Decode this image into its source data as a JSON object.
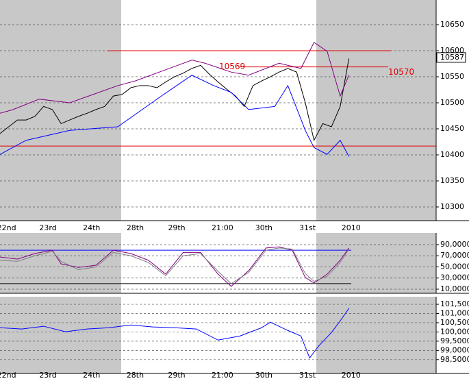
{
  "chart_data": [
    {
      "type": "line",
      "x": [
        0,
        2,
        4,
        6,
        8,
        10,
        12,
        14,
        16,
        18,
        20,
        22,
        24,
        26,
        28,
        30,
        32,
        34,
        36,
        38,
        40,
        42,
        44,
        46,
        48,
        50,
        52,
        54,
        56,
        58,
        60,
        62,
        64,
        66,
        68,
        70,
        72,
        74,
        76,
        78,
        80
      ],
      "series": [
        {
          "color": "#000000",
          "values": [
            10441,
            10454,
            10467,
            10467,
            10474,
            10493,
            10487,
            10460,
            10467,
            10474,
            10480,
            10487,
            10493,
            10513,
            10516,
            10529,
            10533,
            10533,
            10529,
            10540,
            10550,
            10557,
            10566,
            10572,
            10555,
            10540,
            10526,
            10513,
            10493,
            10533,
            10542,
            10550,
            10559,
            10566,
            10559,
            10500,
            10428,
            10460,
            10454,
            10493,
            10585
          ]
        },
        {
          "color": "#800080",
          "x": [
            0,
            3,
            9,
            16,
            27,
            31,
            44,
            47,
            53,
            57,
            64,
            69,
            72,
            75,
            78,
            80
          ],
          "values": [
            10480,
            10487,
            10507,
            10500,
            10533,
            10542,
            10582,
            10576,
            10559,
            10553,
            10576,
            10566,
            10616,
            10599,
            10513,
            10553
          ]
        },
        {
          "color": "#0000ff",
          "x": [
            0,
            6,
            16,
            27,
            37,
            44,
            49,
            53,
            57,
            63,
            66,
            70,
            72,
            75,
            78,
            80
          ],
          "values": [
            10401,
            10428,
            10447,
            10454,
            10513,
            10553,
            10533,
            10520,
            10487,
            10493,
            10533,
            10447,
            10414,
            10401,
            10428,
            10397
          ]
        }
      ],
      "xlim": [
        0,
        100
      ],
      "xticks": [
        {
          "value": 1.5,
          "label": "22nd"
        },
        {
          "value": 11,
          "label": "23rd"
        },
        {
          "value": 21,
          "label": "24th"
        },
        {
          "value": 31,
          "label": "28th"
        },
        {
          "value": 40.5,
          "label": "29th"
        },
        {
          "value": 51,
          "label": "21:00"
        },
        {
          "value": 60.5,
          "label": "30th"
        },
        {
          "value": 70.5,
          "label": "31st"
        },
        {
          "value": 80.5,
          "label": "2010"
        }
      ],
      "ylim": [
        10273.7,
        10697.4
      ],
      "yticks": [
        10300,
        10350,
        10400,
        10450,
        10500,
        10550,
        10600,
        10650
      ],
      "hlines": [
        {
          "value": 10600,
          "color": "#e00000"
        },
        {
          "value": 10417,
          "color": "#e00000"
        },
        {
          "value": 10569,
          "color": "#e00000"
        }
      ],
      "annotations": [
        "10569",
        "10570"
      ],
      "last_value": 10587,
      "grid": true
    },
    {
      "type": "line",
      "x": [
        0,
        4,
        8,
        12,
        14,
        18,
        22,
        26,
        30,
        34,
        38,
        42,
        46,
        50,
        53,
        57,
        61,
        64,
        67,
        70,
        72,
        75,
        78,
        80
      ],
      "series": [
        {
          "color": "#800080",
          "values": [
            67.8,
            64,
            74,
            80,
            55.5,
            49,
            53,
            80,
            74,
            62,
            37,
            76,
            76,
            37,
            15,
            43,
            84,
            86,
            80,
            31,
            21,
            37,
            62,
            84
          ]
        },
        {
          "color": "#808080",
          "values": [
            62,
            60,
            70,
            78,
            60,
            45,
            50,
            76,
            70,
            58,
            34,
            70,
            74,
            42,
            20,
            40,
            80,
            84,
            82,
            38,
            24,
            33,
            58,
            82
          ]
        }
      ],
      "xlim": [
        0,
        100
      ],
      "ylim": [
        2.6,
        110.9
      ],
      "yticks": [
        {
          "value": 10,
          "label": "10,0000"
        },
        {
          "value": 30,
          "label": "30,0000"
        },
        {
          "value": 50,
          "label": "50,0000"
        },
        {
          "value": 70,
          "label": "70,0000"
        },
        {
          "value": 90,
          "label": "90,0000"
        }
      ],
      "hlines": [
        {
          "value": 80,
          "color": "#0000ff"
        },
        {
          "value": 20,
          "color": "#000000"
        }
      ],
      "grid": true
    },
    {
      "type": "line",
      "x": [
        0,
        5,
        10,
        15,
        20,
        25,
        30,
        35,
        40,
        45,
        50,
        55,
        60,
        62,
        66,
        69,
        71,
        73,
        76,
        78,
        80
      ],
      "series": [
        {
          "color": "#0000ff",
          "values": [
            100.23,
            100.16,
            100.31,
            100.01,
            100.16,
            100.23,
            100.38,
            100.27,
            100.23,
            100.16,
            99.56,
            99.78,
            100.23,
            100.53,
            100.08,
            99.78,
            98.59,
            99.22,
            99.97,
            100.6,
            101.28
          ]
        }
      ],
      "xlim": [
        0,
        100
      ],
      "xticks": [
        {
          "value": 1.5,
          "label": "22nd"
        },
        {
          "value": 11,
          "label": "23rd"
        },
        {
          "value": 21,
          "label": "24th"
        },
        {
          "value": 31,
          "label": "28th"
        },
        {
          "value": 40.5,
          "label": "29th"
        },
        {
          "value": 51,
          "label": "21:00"
        },
        {
          "value": 60.5,
          "label": "30th"
        },
        {
          "value": 70.5,
          "label": "31st"
        },
        {
          "value": 80.5,
          "label": "2010"
        }
      ],
      "ylim": [
        97.75,
        101.91
      ],
      "yticks": [
        {
          "value": 98.5,
          "label": "98,5000"
        },
        {
          "value": 99,
          "label": "99,0000"
        },
        {
          "value": 99.5,
          "label": "99,5000"
        },
        {
          "value": 100,
          "label": "100,0000"
        },
        {
          "value": 100.5,
          "label": "100,5000"
        },
        {
          "value": 101,
          "label": "101,0000"
        },
        {
          "value": 101.5,
          "label": "101,5000"
        }
      ],
      "grid": true
    }
  ]
}
